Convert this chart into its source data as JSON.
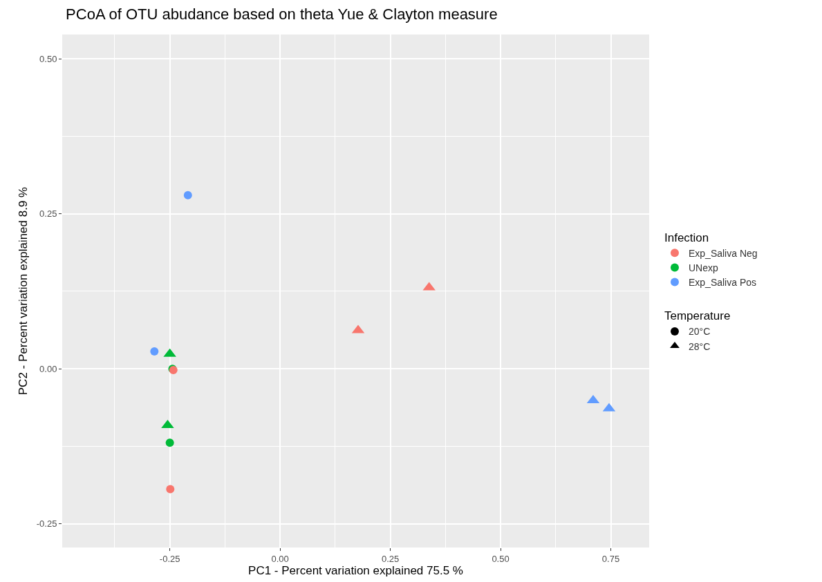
{
  "chart_data": {
    "type": "scatter",
    "title": "PCoA of OTU abudance based on theta Yue & Clayton measure",
    "xlabel": "PC1 - Percent variation explained 75.5 %",
    "ylabel": "PC2 - Percent variation explained 8.9 %",
    "legend_title": [
      "Infection",
      "Temperature"
    ],
    "series": [
      {
        "name": "Exp_Saliva Neg",
        "color": "#f8766d",
        "x": [
          -0.242,
          -0.249,
          0.177,
          0.338
        ],
        "values": [
          -0.002,
          -0.194,
          0.062,
          0.131
        ],
        "marker": [
          "circle",
          "circle",
          "triangle",
          "triangle"
        ]
      },
      {
        "name": "UNexp",
        "color": "#00ba38",
        "x": [
          -0.244,
          -0.25,
          -0.25,
          -0.255
        ],
        "values": [
          0.0,
          -0.119,
          0.024,
          -0.091
        ],
        "marker": [
          "circle",
          "circle",
          "triangle",
          "triangle"
        ]
      },
      {
        "name": "Exp_Saliva Pos",
        "color": "#619cff",
        "x": [
          -0.209,
          -0.285,
          0.71,
          0.746
        ],
        "values": [
          0.28,
          0.028,
          -0.051,
          -0.064
        ],
        "marker": [
          "circle",
          "circle",
          "triangle",
          "triangle"
        ]
      },
      {
        "name": "20°C",
        "color": "#000000",
        "marker": "circle"
      },
      {
        "name": "28°C",
        "color": "#000000",
        "marker": "triangle"
      }
    ],
    "xlim": [
      -0.494,
      0.837
    ],
    "ylim": [
      -0.288,
      0.539
    ],
    "xticks": [
      -0.25,
      {
        "value": 0,
        "label": "0.00"
      },
      0.25,
      {
        "value": 0.5,
        "label": "0.50"
      },
      0.75
    ],
    "yticks": [
      -0.25,
      {
        "value": 0,
        "label": "0.00"
      },
      0.25,
      {
        "value": 0.5,
        "label": "0.50"
      }
    ],
    "grid": true,
    "legend": "right"
  }
}
